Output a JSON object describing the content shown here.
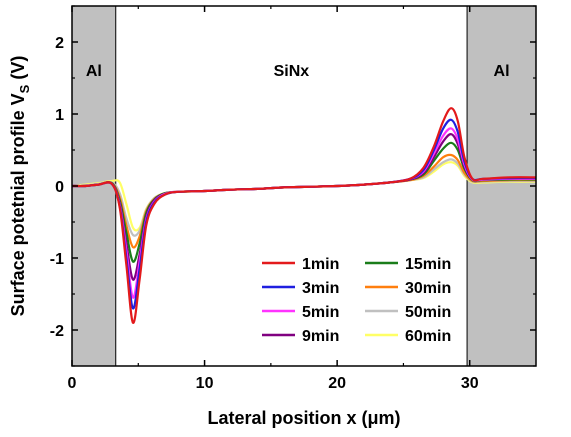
{
  "chart_data": {
    "type": "line",
    "title": "",
    "xlabel": "Lateral position x (μm)",
    "ylabel_main": "Surface potetnial profile V",
    "ylabel_sub": "S",
    "ylabel_unit": " (V)",
    "xlim": [
      0,
      35
    ],
    "ylim": [
      -2.5,
      2.5
    ],
    "x_ticks": [
      0,
      10,
      20,
      30
    ],
    "y_ticks": [
      -2,
      -1,
      0,
      1,
      2
    ],
    "grid": false,
    "legend_position": "lower-right",
    "regions": [
      {
        "label": "Al",
        "x_range": [
          0,
          3.3
        ],
        "color": "#c0c0c0"
      },
      {
        "label": "SiNx",
        "x_range": [
          3.3,
          29.8
        ],
        "color": "#ffffff"
      },
      {
        "label": "Al",
        "x_range": [
          29.8,
          35
        ],
        "color": "#c0c0c0"
      }
    ],
    "x": [
      0,
      1,
      2,
      3,
      3.6,
      4.1,
      4.6,
      5.1,
      5.6,
      6.2,
      7,
      8,
      10,
      12,
      14,
      16,
      18,
      20,
      22,
      24,
      25.5,
      26.5,
      27.3,
      28,
      28.6,
      29.1,
      29.6,
      30.2,
      31,
      33,
      35
    ],
    "series": [
      {
        "name": "1min",
        "color": "#e31a1c",
        "values": [
          0,
          0,
          0.02,
          0.03,
          -0.3,
          -1.1,
          -1.9,
          -1.3,
          -0.55,
          -0.25,
          -0.12,
          -0.08,
          -0.07,
          -0.05,
          -0.04,
          -0.02,
          -0.01,
          0,
          0.02,
          0.05,
          0.1,
          0.25,
          0.55,
          0.9,
          1.08,
          0.9,
          0.4,
          0.1,
          0.1,
          0.12,
          0.12
        ]
      },
      {
        "name": "3min",
        "color": "#1f1fe0",
        "values": [
          0,
          0,
          0.02,
          0.03,
          -0.28,
          -1.0,
          -1.7,
          -1.15,
          -0.5,
          -0.23,
          -0.12,
          -0.08,
          -0.07,
          -0.05,
          -0.04,
          -0.02,
          -0.01,
          0,
          0.02,
          0.05,
          0.1,
          0.22,
          0.5,
          0.8,
          0.92,
          0.75,
          0.34,
          0.1,
          0.1,
          0.11,
          0.11
        ]
      },
      {
        "name": "5min",
        "color": "#ff33ff",
        "values": [
          0,
          0,
          0.02,
          0.03,
          -0.26,
          -0.9,
          -1.55,
          -1.05,
          -0.47,
          -0.22,
          -0.11,
          -0.08,
          -0.07,
          -0.05,
          -0.04,
          -0.02,
          -0.01,
          0,
          0.02,
          0.05,
          0.1,
          0.2,
          0.45,
          0.7,
          0.8,
          0.65,
          0.3,
          0.09,
          0.09,
          0.1,
          0.1
        ]
      },
      {
        "name": "9min",
        "color": "#800080",
        "values": [
          0,
          0,
          0.02,
          0.03,
          -0.24,
          -0.8,
          -1.3,
          -0.95,
          -0.43,
          -0.2,
          -0.11,
          -0.08,
          -0.07,
          -0.05,
          -0.04,
          -0.02,
          -0.01,
          0,
          0.02,
          0.05,
          0.09,
          0.18,
          0.4,
          0.62,
          0.72,
          0.58,
          0.27,
          0.09,
          0.09,
          0.1,
          0.1
        ]
      },
      {
        "name": "15min",
        "color": "#1a7d1a",
        "values": [
          0,
          0,
          0.02,
          0.04,
          -0.2,
          -0.65,
          -1.05,
          -0.8,
          -0.38,
          -0.19,
          -0.1,
          -0.08,
          -0.07,
          -0.05,
          -0.04,
          -0.02,
          -0.01,
          0,
          0.02,
          0.05,
          0.09,
          0.16,
          0.35,
          0.52,
          0.6,
          0.5,
          0.24,
          0.08,
          0.08,
          0.09,
          0.09
        ]
      },
      {
        "name": "30min",
        "color": "#ff7f0e",
        "values": [
          0,
          0,
          0.02,
          0.04,
          -0.16,
          -0.55,
          -0.85,
          -0.7,
          -0.35,
          -0.18,
          -0.1,
          -0.08,
          -0.07,
          -0.05,
          -0.04,
          -0.02,
          -0.01,
          0,
          0.02,
          0.05,
          0.08,
          0.14,
          0.27,
          0.4,
          0.43,
          0.36,
          0.18,
          0.07,
          0.07,
          0.08,
          0.08
        ]
      },
      {
        "name": "50min",
        "color": "#c0c0c0",
        "values": [
          0,
          0.01,
          0.03,
          0.05,
          -0.1,
          -0.45,
          -0.68,
          -0.62,
          -0.33,
          -0.17,
          -0.1,
          -0.08,
          -0.07,
          -0.05,
          -0.04,
          -0.02,
          -0.01,
          0,
          0.02,
          0.05,
          0.08,
          0.12,
          0.23,
          0.33,
          0.37,
          0.31,
          0.16,
          0.06,
          0.06,
          0.07,
          0.07
        ]
      },
      {
        "name": "60min",
        "color": "#ffff66",
        "values": [
          0,
          0.02,
          0.04,
          0.07,
          0.05,
          -0.25,
          -0.58,
          -0.58,
          -0.32,
          -0.17,
          -0.1,
          -0.08,
          -0.07,
          -0.05,
          -0.04,
          -0.02,
          -0.01,
          0,
          0.02,
          0.05,
          0.08,
          0.11,
          0.2,
          0.3,
          0.33,
          0.28,
          0.14,
          0.05,
          0.05,
          0.06,
          0.06
        ]
      }
    ]
  }
}
